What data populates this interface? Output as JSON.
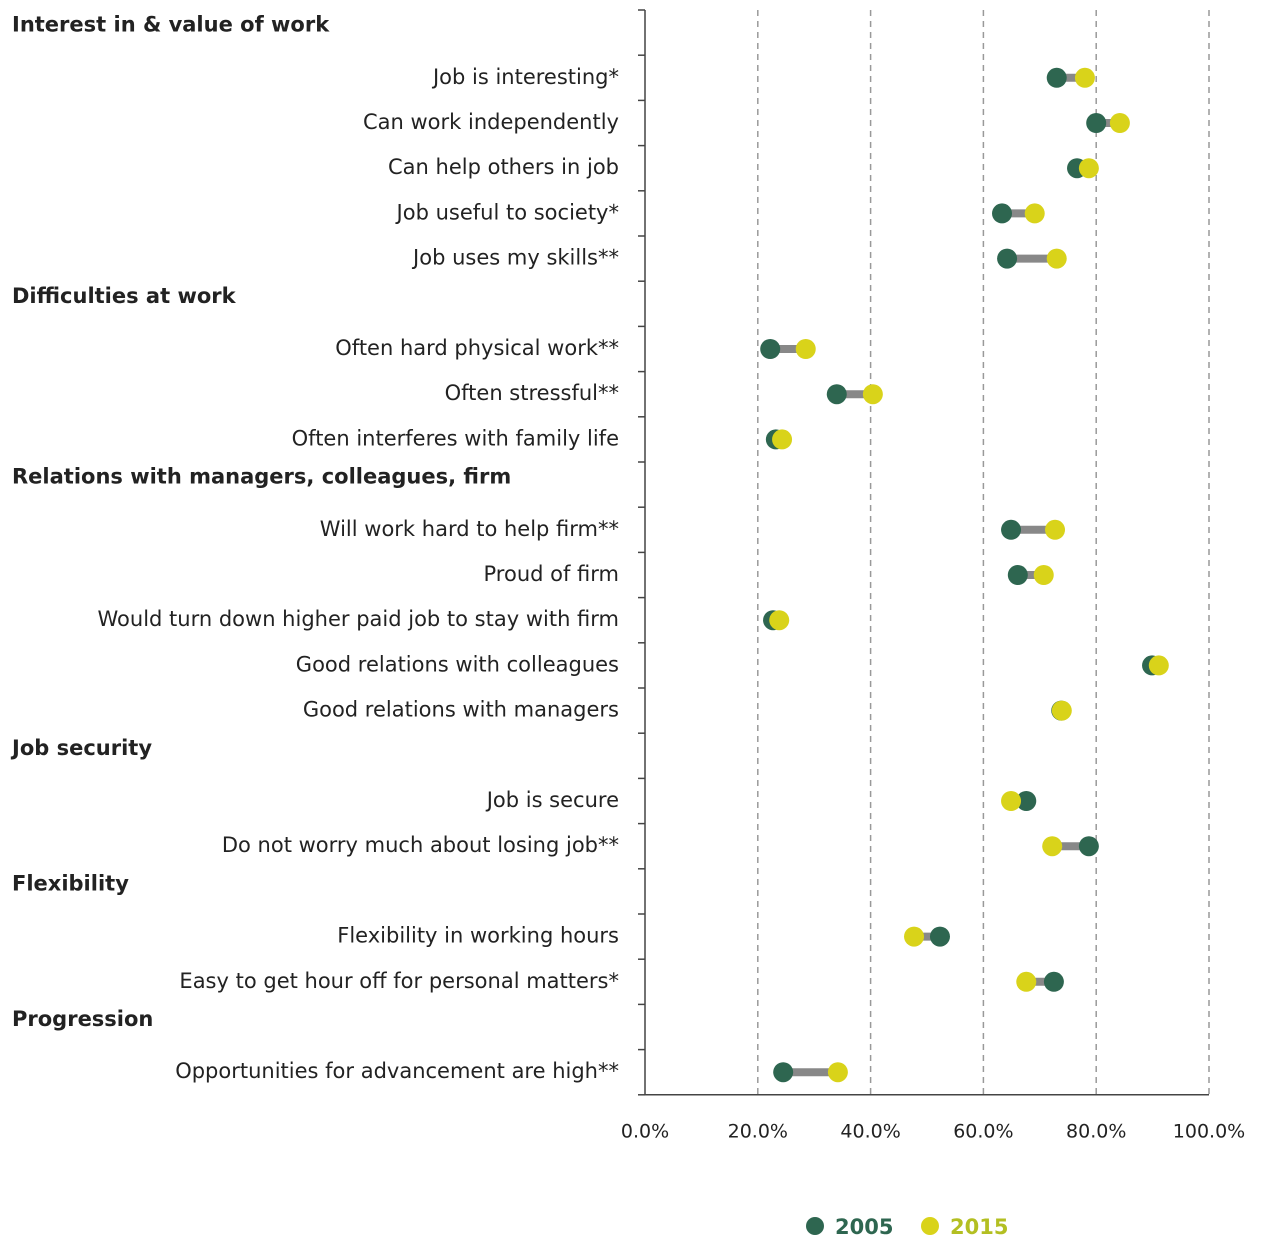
{
  "chart_data": {
    "type": "dumbbell",
    "categories": [
      "Interest in & value of work",
      "Job is interesting*",
      "Can work independently",
      "Can help others in job",
      "Job useful to society*",
      "Job uses my skills**",
      "Difficulties at work",
      "Often hard physical work**",
      "Often stressful**",
      "Often interferes with family life",
      "Relations with managers, colleagues, firm",
      "Will work hard to help firm**",
      "Proud of firm",
      "Would turn down higher paid job to stay with firm",
      "Good relations with colleagues",
      "Good relations with managers",
      "Job security",
      "Job is secure",
      "Do not worry much about losing job**",
      "Flexibility",
      "Flexibility in working hours",
      "Easy to get hour off for personal matters*",
      "Progression",
      "Opportunities for advancement are high**"
    ],
    "series": [
      {
        "name": "2005",
        "color": "#2e6650",
        "values": [
          null,
          73.0,
          80.0,
          76.6,
          63.3,
          64.2,
          null,
          22.2,
          34.0,
          23.2,
          null,
          64.9,
          66.1,
          22.7,
          89.9,
          73.8,
          null,
          67.6,
          78.7,
          null,
          52.3,
          72.5,
          null,
          24.5
        ]
      },
      {
        "name": "2015",
        "color": "#d9d31a",
        "values": [
          null,
          78.0,
          84.2,
          78.7,
          69.1,
          73.0,
          null,
          28.5,
          40.4,
          24.3,
          null,
          72.7,
          70.7,
          23.8,
          91.1,
          73.9,
          null,
          64.9,
          72.2,
          null,
          47.7,
          67.6,
          null,
          34.2
        ]
      }
    ],
    "xlim": [
      0,
      100
    ],
    "xticks": [
      {
        "value": 0,
        "label": "0.0%"
      },
      {
        "value": 20,
        "label": "20.0%"
      },
      {
        "value": 40,
        "label": "40.0%"
      },
      {
        "value": 60,
        "label": "60.0%"
      },
      {
        "value": 80,
        "label": "80.0%"
      },
      {
        "value": 100,
        "label": "100.0%"
      }
    ],
    "grid": true
  }
}
